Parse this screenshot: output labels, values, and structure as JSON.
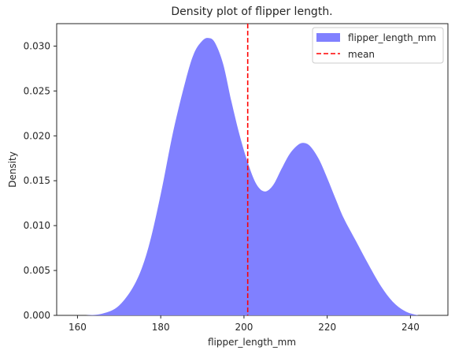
{
  "chart_data": {
    "type": "area",
    "title": "Density plot of flipper length.",
    "xlabel": "flipper_length_mm",
    "ylabel": "Density",
    "xlim": [
      155,
      249
    ],
    "ylim": [
      0,
      0.0325
    ],
    "xticks": [
      160,
      180,
      200,
      220,
      240
    ],
    "yticks": [
      0.0,
      0.005,
      0.01,
      0.015,
      0.02,
      0.025,
      0.03
    ],
    "ytick_labels": [
      "0.000",
      "0.005",
      "0.010",
      "0.015",
      "0.020",
      "0.025",
      "0.030"
    ],
    "grid": false,
    "legend_position": "top-right",
    "series": [
      {
        "name": "flipper_length_mm",
        "color": "#8080ff",
        "x": [
          162,
          166,
          170,
          174,
          177,
          180,
          183,
          186,
          188,
          190,
          191.5,
          193,
          195,
          197,
          199,
          201,
          203,
          205,
          207,
          209,
          211,
          213,
          214.5,
          216,
          218,
          220,
          222,
          224,
          227,
          230,
          233,
          236,
          239,
          242
        ],
        "y": [
          0.0,
          0.0002,
          0.0011,
          0.0037,
          0.0075,
          0.0135,
          0.0205,
          0.0262,
          0.0292,
          0.0306,
          0.0309,
          0.0304,
          0.028,
          0.0238,
          0.02,
          0.0169,
          0.0146,
          0.0138,
          0.0145,
          0.0163,
          0.018,
          0.019,
          0.0192,
          0.0188,
          0.0174,
          0.0153,
          0.013,
          0.0108,
          0.0082,
          0.0056,
          0.0032,
          0.0014,
          0.0004,
          0.0
        ]
      }
    ],
    "reference_line": {
      "name": "mean",
      "x": 200.9,
      "color": "#ff0000",
      "style": "dashed"
    }
  }
}
